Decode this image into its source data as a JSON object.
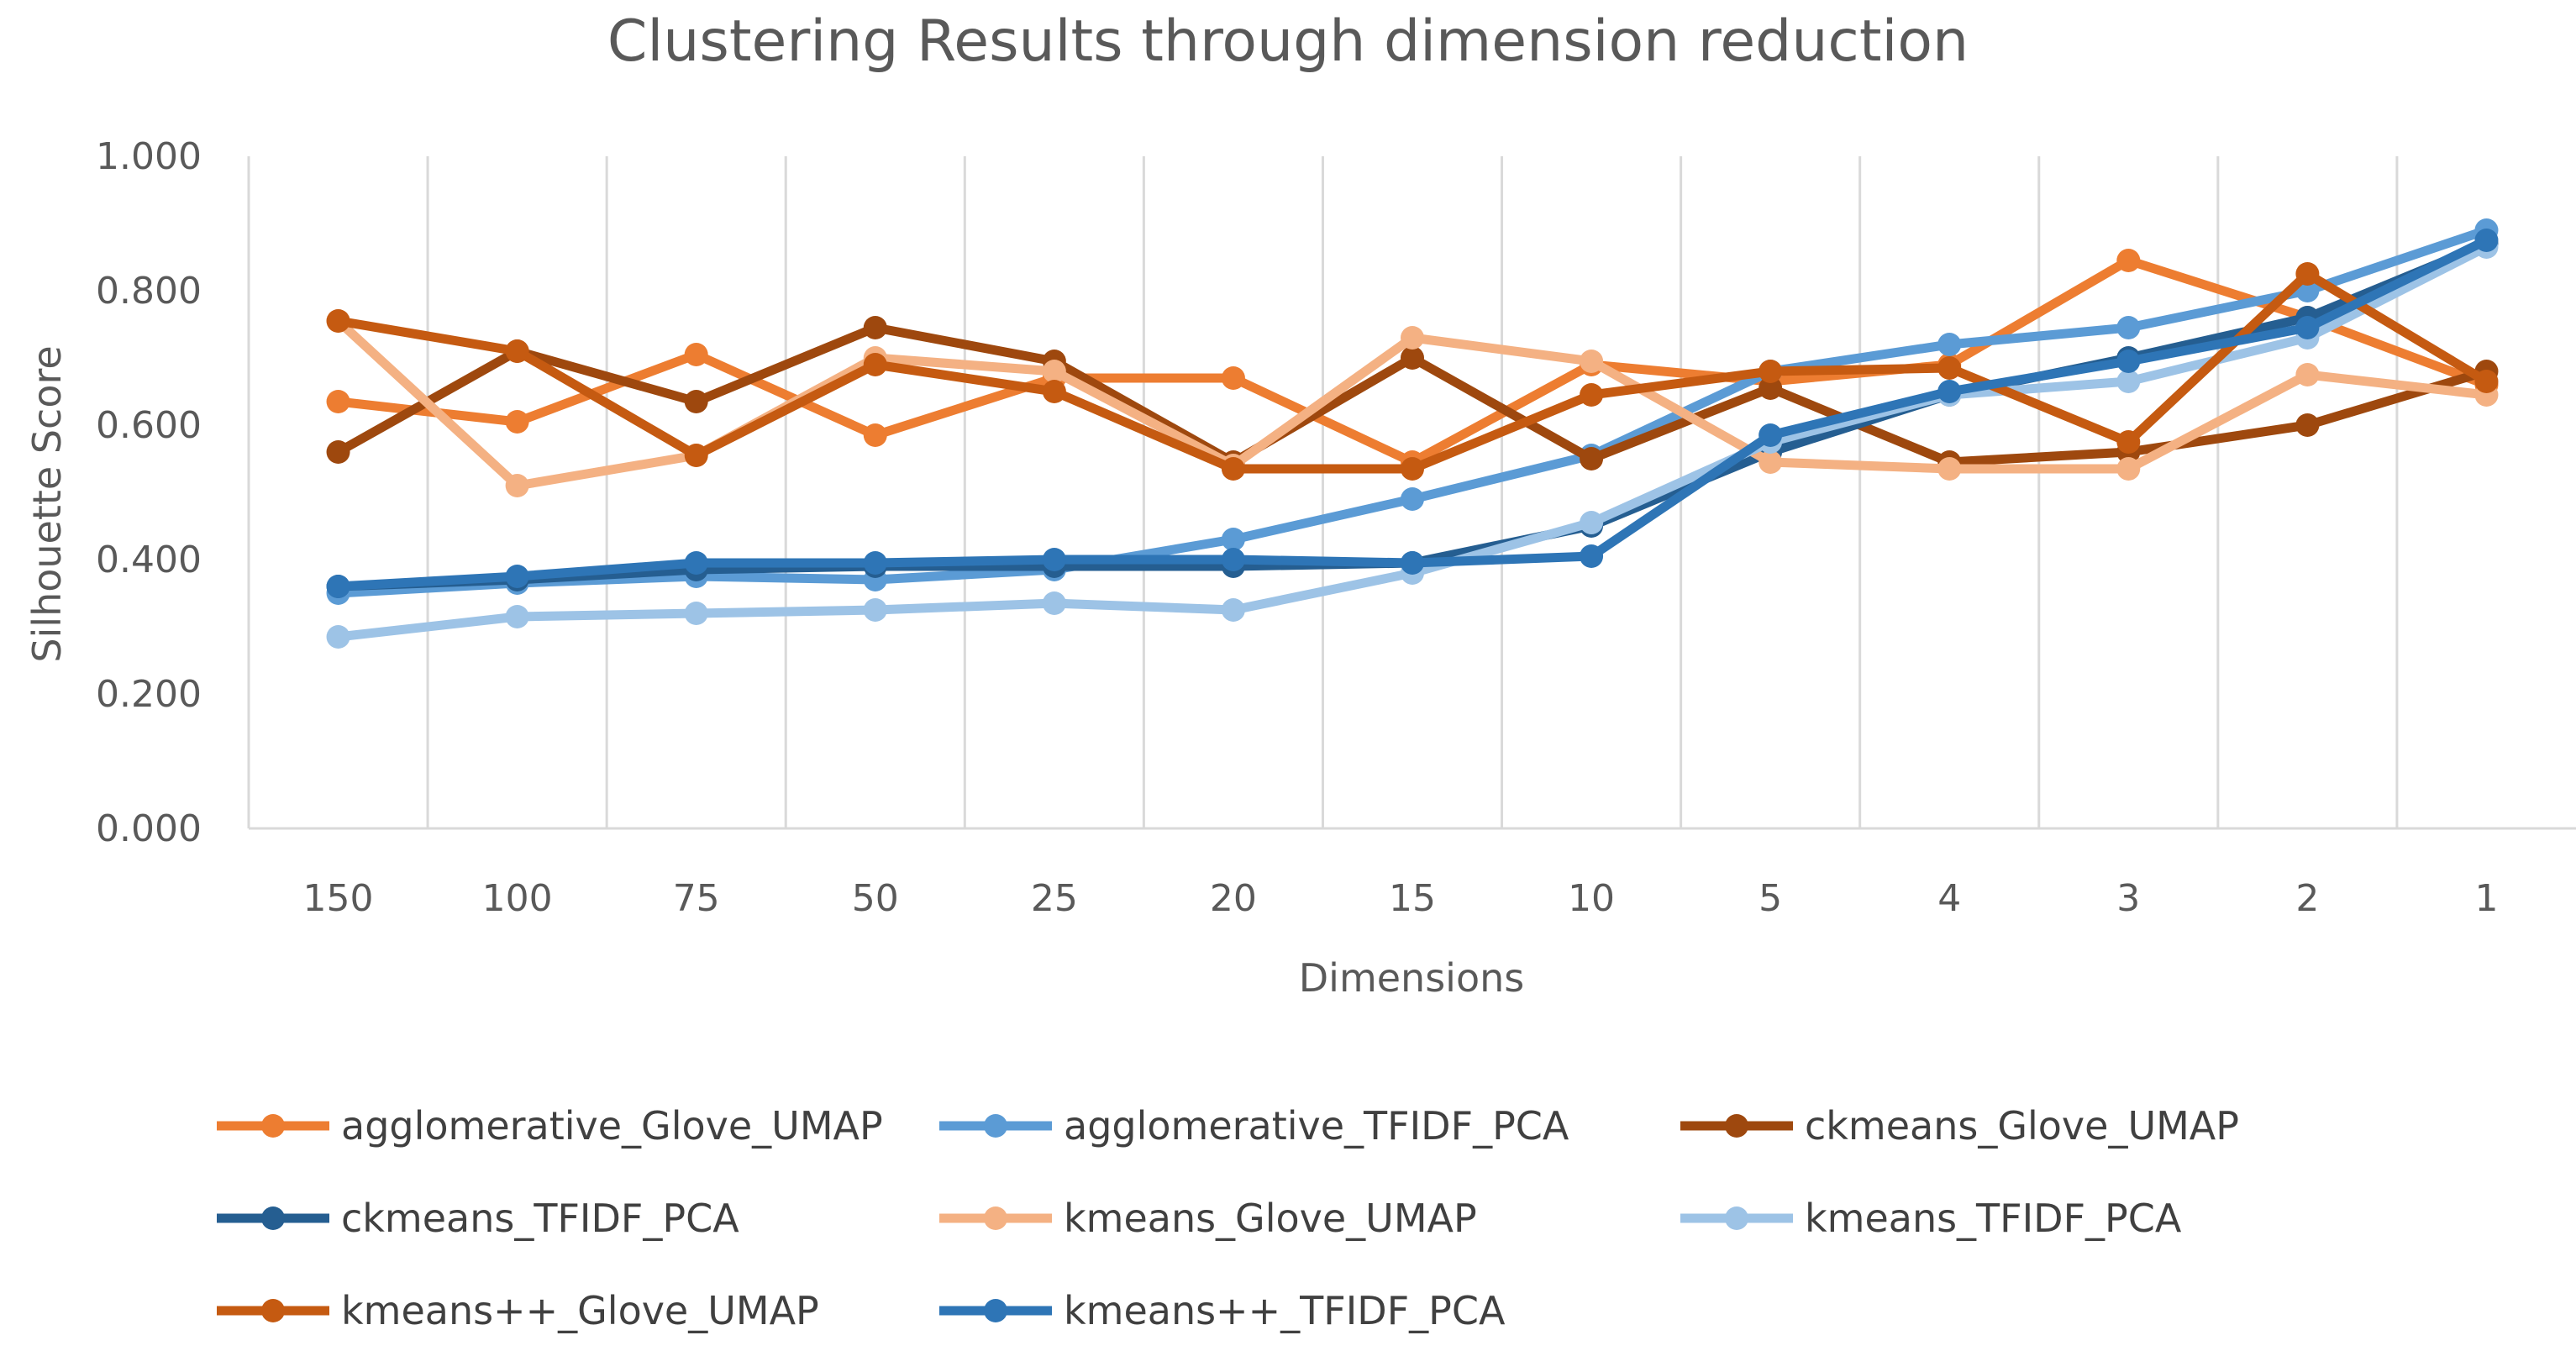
{
  "chart_data": {
    "type": "line",
    "title": "Clustering Results through dimension reduction",
    "xlabel": "Dimensions",
    "ylabel": "Silhouette Score",
    "categories": [
      "150",
      "100",
      "75",
      "50",
      "25",
      "20",
      "15",
      "10",
      "5",
      "4",
      "3",
      "2",
      "1"
    ],
    "ylim": [
      0,
      1
    ],
    "yticks": [
      "0.000",
      "0.200",
      "0.400",
      "0.600",
      "0.800",
      "1.000"
    ],
    "yticks_values": [
      0,
      0.2,
      0.4,
      0.6,
      0.8,
      1.0
    ],
    "grid": "vertical",
    "legend_position": "bottom",
    "series": [
      {
        "name": "agglomerative_Glove_UMAP",
        "color": "#ED7D31",
        "values": [
          0.635,
          0.605,
          0.705,
          0.585,
          0.67,
          0.67,
          0.545,
          0.69,
          0.665,
          0.69,
          0.845,
          0.76,
          0.66
        ]
      },
      {
        "name": "agglomerative_TFIDF_PCA",
        "color": "#5B9BD5",
        "values": [
          0.35,
          0.365,
          0.375,
          0.37,
          0.385,
          0.43,
          0.49,
          0.555,
          0.68,
          0.72,
          0.745,
          0.8,
          0.89
        ]
      },
      {
        "name": "ckmeans_Glove_UMAP",
        "color": "#9E480E",
        "values": [
          0.56,
          0.71,
          0.635,
          0.745,
          0.695,
          0.545,
          0.7,
          0.55,
          0.655,
          0.545,
          0.56,
          0.6,
          0.68
        ]
      },
      {
        "name": "ckmeans_TFIDF_PCA",
        "color": "#255E91",
        "values": [
          0.36,
          0.37,
          0.385,
          0.39,
          0.39,
          0.39,
          0.395,
          0.45,
          0.56,
          0.645,
          0.7,
          0.76,
          0.87
        ]
      },
      {
        "name": "kmeans_Glove_UMAP",
        "color": "#F4B183",
        "values": [
          0.755,
          0.51,
          0.555,
          0.7,
          0.68,
          0.54,
          0.73,
          0.695,
          0.545,
          0.535,
          0.535,
          0.675,
          0.645
        ]
      },
      {
        "name": "kmeans_TFIDF_PCA",
        "color": "#9DC3E6",
        "values": [
          0.285,
          0.315,
          0.32,
          0.325,
          0.335,
          0.325,
          0.38,
          0.455,
          0.575,
          0.645,
          0.665,
          0.73,
          0.865
        ]
      },
      {
        "name": "kmeans++_Glove_UMAP",
        "color": "#C55A11",
        "values": [
          0.755,
          0.71,
          0.555,
          0.69,
          0.65,
          0.535,
          0.535,
          0.645,
          0.68,
          0.685,
          0.575,
          0.825,
          0.665
        ]
      },
      {
        "name": "kmeans++_TFIDF_PCA",
        "color": "#2E75B6",
        "values": [
          0.36,
          0.375,
          0.395,
          0.395,
          0.4,
          0.4,
          0.395,
          0.405,
          0.585,
          0.65,
          0.695,
          0.745,
          0.875
        ]
      }
    ]
  }
}
